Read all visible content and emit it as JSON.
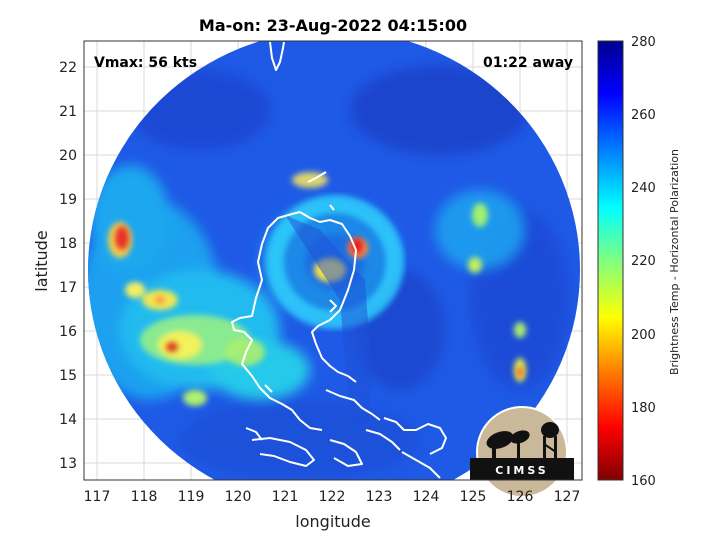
{
  "title": "Ma-on: 23-Aug-2022 04:15:00",
  "vmax_label": "Vmax: 56 kts",
  "away_label": "01:22 away",
  "xaxis": {
    "label": "longitude",
    "ticks": [
      "117",
      "118",
      "119",
      "120",
      "121",
      "122",
      "123",
      "124",
      "125",
      "126",
      "127"
    ],
    "range": [
      116.7,
      127.3
    ]
  },
  "yaxis": {
    "label": "latitude",
    "ticks": [
      "13",
      "14",
      "15",
      "16",
      "17",
      "18",
      "19",
      "20",
      "21",
      "22"
    ],
    "range": [
      12.6,
      22.6
    ]
  },
  "colorbar": {
    "label": "Brightness Temp - Horizontal Polarization",
    "ticks": [
      "280",
      "260",
      "240",
      "220",
      "200",
      "180",
      "160"
    ],
    "range": [
      160,
      280
    ],
    "colors": [
      "#7f0000",
      "#ff0000",
      "#ff8000",
      "#ffff00",
      "#80ff80",
      "#00ffff",
      "#0080ff",
      "#0000ff",
      "#00008f"
    ]
  },
  "logo": {
    "text": "CIMSS"
  },
  "colors": {
    "swath_base": "#1f5ae6",
    "coast": "#ffffff",
    "grid": "#d9d9d9"
  }
}
